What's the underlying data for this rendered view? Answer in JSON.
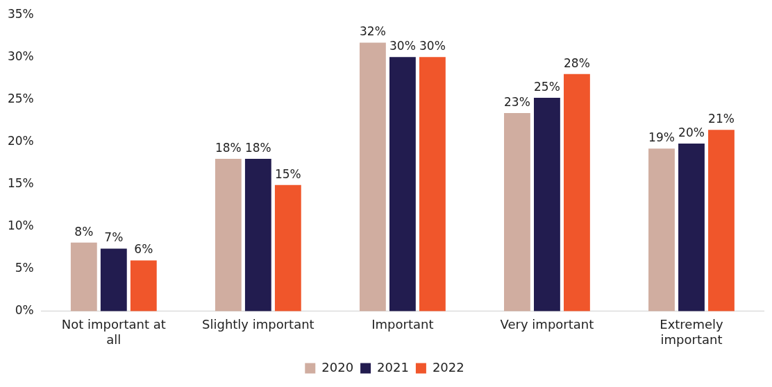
{
  "chart_data": {
    "type": "bar",
    "categories": [
      "Not important at all",
      "Slightly important",
      "Important",
      "Very important",
      "Extremely important"
    ],
    "series": [
      {
        "name": "2020",
        "color": "#d0ada0",
        "values": [
          8.1,
          18.0,
          31.7,
          23.4,
          19.2
        ],
        "value_labels": [
          "8%",
          "18%",
          "32%",
          "23%",
          "19%"
        ]
      },
      {
        "name": "2021",
        "color": "#221c4f",
        "values": [
          7.4,
          18.0,
          30.0,
          25.2,
          19.8
        ],
        "value_labels": [
          "7%",
          "18%",
          "30%",
          "25%",
          "20%"
        ]
      },
      {
        "name": "2022",
        "color": "#f0562b",
        "values": [
          6.0,
          14.9,
          30.0,
          28.0,
          21.4
        ],
        "value_labels": [
          "6%",
          "15%",
          "30%",
          "28%",
          "21%"
        ]
      }
    ],
    "ylim": [
      0,
      35
    ],
    "yticks": [
      {
        "value": 0,
        "label": "0%"
      },
      {
        "value": 5,
        "label": "5%"
      },
      {
        "value": 10,
        "label": "10%"
      },
      {
        "value": 15,
        "label": "15%"
      },
      {
        "value": 20,
        "label": "20%"
      },
      {
        "value": 25,
        "label": "25%"
      },
      {
        "value": 30,
        "label": "30%"
      },
      {
        "value": 35,
        "label": "35%"
      }
    ],
    "grid": false,
    "legend": "bottom"
  }
}
